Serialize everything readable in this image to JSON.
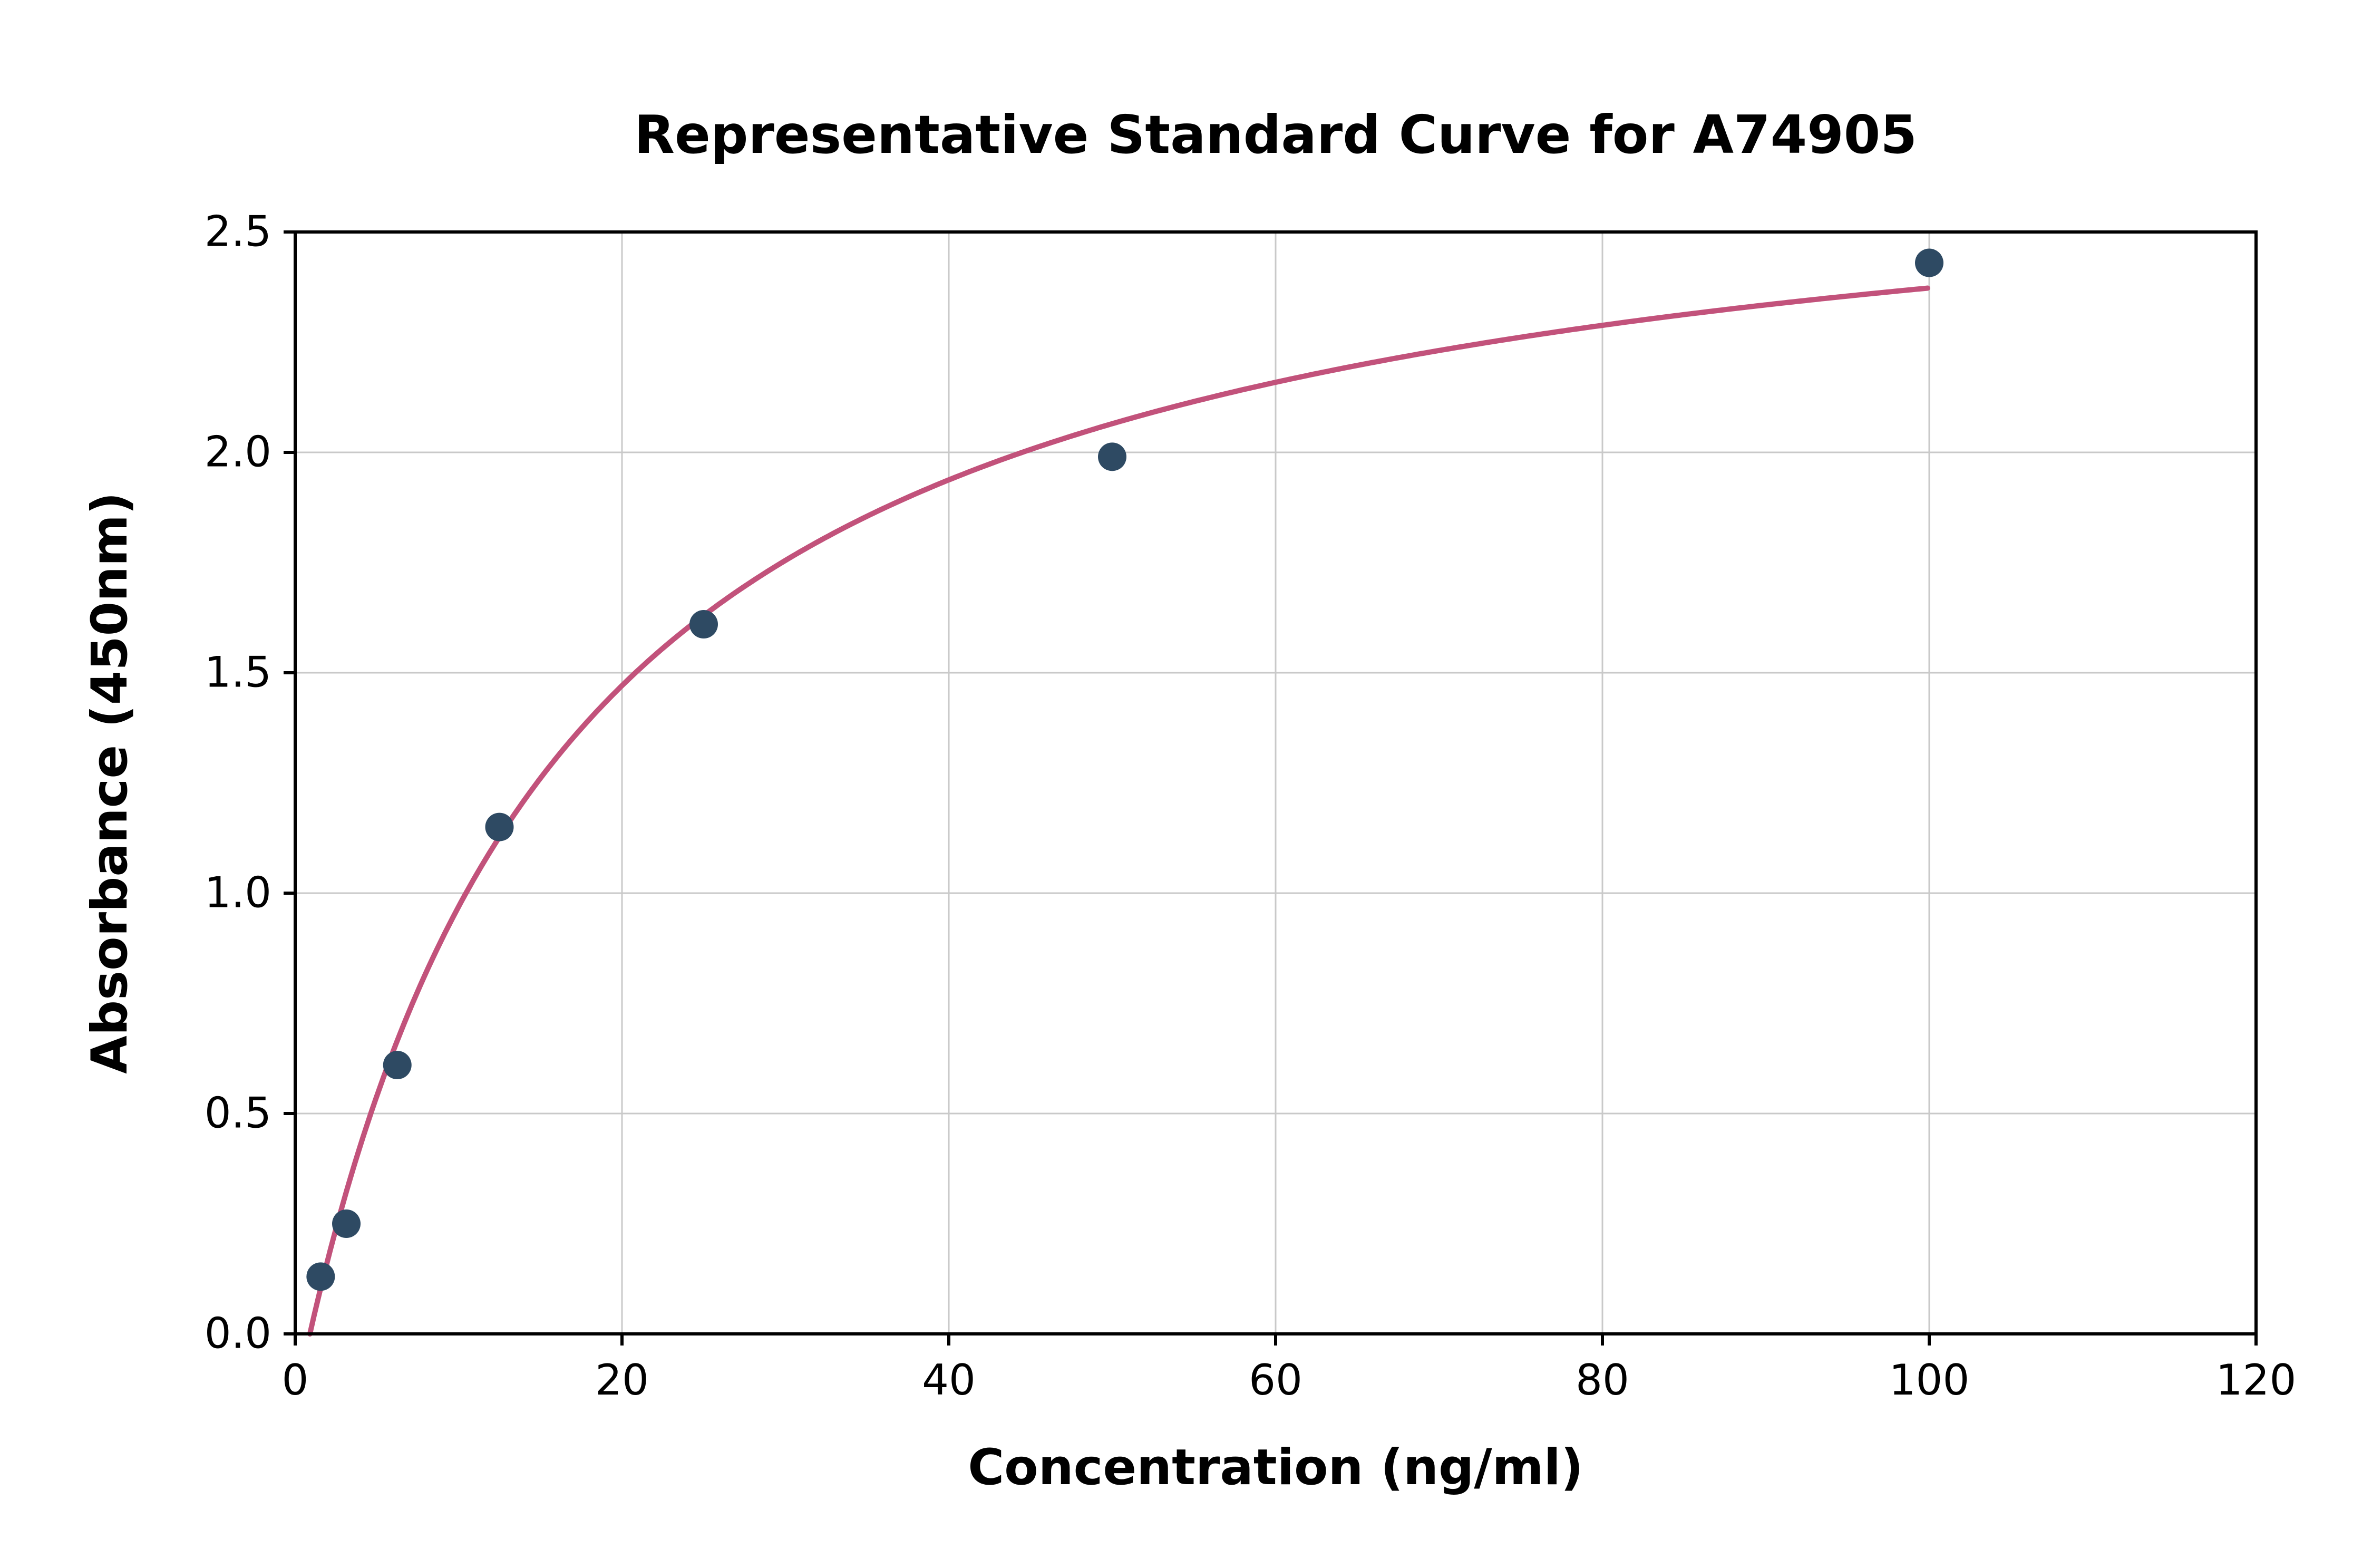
{
  "chart_data": {
    "type": "scatter",
    "title": "Representative Standard Curve for A74905",
    "xlabel": "Concentration (ng/ml)",
    "ylabel": "Absorbance (450nm)",
    "xlim": [
      0,
      120
    ],
    "ylim": [
      0,
      2.5
    ],
    "grid": true,
    "legend": "none",
    "x_ticks": [
      0,
      20,
      40,
      60,
      80,
      100,
      120
    ],
    "x_tick_labels": [
      "0",
      "20",
      "40",
      "60",
      "80",
      "100",
      "120"
    ],
    "y_ticks": [
      0.0,
      0.5,
      1.0,
      1.5,
      2.0,
      2.5
    ],
    "y_tick_labels": [
      "0.0",
      "0.5",
      "1.0",
      "1.5",
      "2.0",
      "2.5"
    ],
    "points": [
      {
        "x": 1.56,
        "y": 0.13
      },
      {
        "x": 3.13,
        "y": 0.25
      },
      {
        "x": 6.25,
        "y": 0.61
      },
      {
        "x": 12.5,
        "y": 1.15
      },
      {
        "x": 25.0,
        "y": 1.61
      },
      {
        "x": 50.0,
        "y": 1.99
      },
      {
        "x": 100.0,
        "y": 2.43
      }
    ],
    "fit_curve": {
      "model": "saturation",
      "vmax": 2.78,
      "k": 17,
      "x0": 0.9,
      "x_start": 0.9,
      "x_end": 100.0
    },
    "colors": {
      "curve": "#c2527b",
      "points": "#2e4a63",
      "grid": "#c9c9c9",
      "axis": "#000000",
      "background": "#ffffff"
    }
  }
}
